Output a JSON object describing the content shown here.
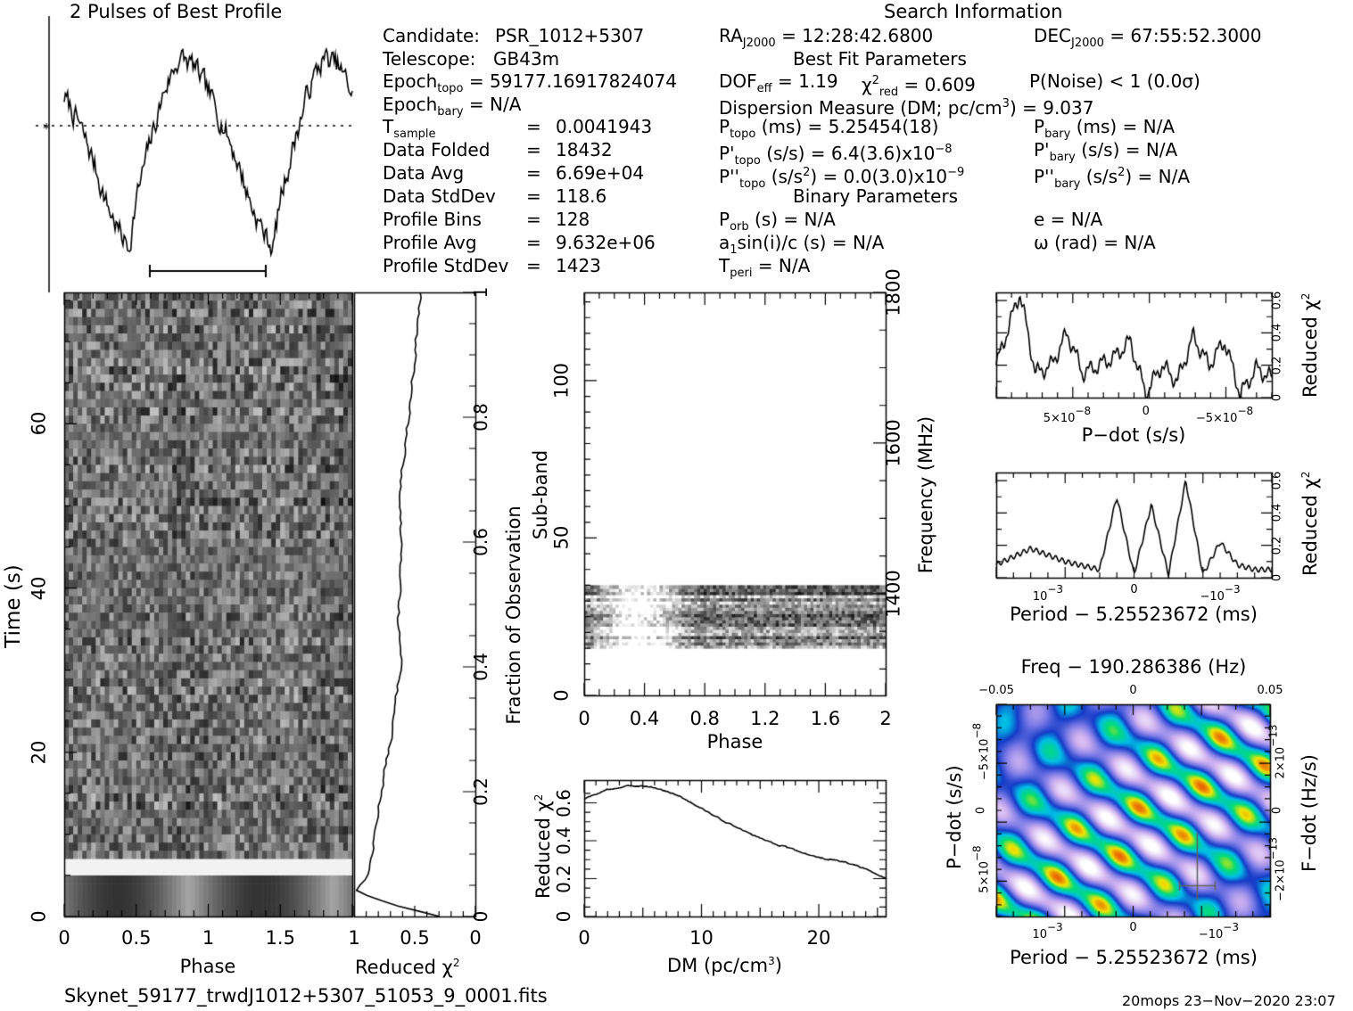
{
  "profile": {
    "title": "2 Pulses of Best Profile"
  },
  "search_info": {
    "title": "Search Information",
    "candidate_label": "Candidate:",
    "candidate": "PSR_1012+5307",
    "telescope_label": "Telescope:",
    "telescope": "GB43m",
    "epoch_topo_label": "Epoch",
    "epoch_topo_sub": "topo",
    "epoch_topo": "= 59177.16917824074",
    "epoch_bary_label": "Epoch",
    "epoch_bary_sub": "bary",
    "epoch_bary": "= N/A",
    "tsample_label": "T",
    "tsample_sub": "sample",
    "tsample": "0.0041943",
    "data_folded_label": "Data Folded",
    "data_folded": "18432",
    "data_avg_label": "Data Avg",
    "data_avg": "6.69e+04",
    "data_stddev_label": "Data StdDev",
    "data_stddev": "118.6",
    "profile_bins_label": "Profile Bins",
    "profile_bins": "128",
    "profile_avg_label": "Profile Avg",
    "profile_avg": "9.632e+06",
    "profile_stddev_label": "Profile StdDev",
    "profile_stddev": "1423",
    "eq": "=",
    "ra_label": "RA",
    "ra_sub": "J2000",
    "ra": "= 12:28:42.6800",
    "dec_label": "DEC",
    "dec_sub": "J2000",
    "dec": "= 67:55:52.3000",
    "best_fit_title": "Best Fit Parameters",
    "dof_label": "DOF",
    "dof_sub": "eff",
    "dof": "= 1.19",
    "chi_label": "χ",
    "chi_sup": "2",
    "chi_sub": "red",
    "chi": "= 0.609",
    "pnoise": "P(Noise) < 1   (0.0σ)",
    "dm_line_a": "Dispersion Measure (DM; pc/cm",
    "dm_line_sup": "3",
    "dm_line_b": ") = 9.037",
    "ptopo_label": "P",
    "ptopo_sub": "topo",
    "ptopo": "(ms) =  5.25454(18)",
    "pbary_label": "P",
    "pbary_sub": "bary",
    "pbary": "(ms) = N/A",
    "pdtopo_label": "P'",
    "pdtopo_sub": "topo",
    "pdtopo": "(s/s) =  6.4(3.6)x10",
    "pdtopo_exp": "−8",
    "pdbary_label": "P'",
    "pdbary_sub": "bary",
    "pdbary": "(s/s) = N/A",
    "pddtopo_label": "P''",
    "pddtopo_sub": "topo",
    "pddtopo_a": "(s/s",
    "pddtopo_sup": "2",
    "pddtopo_b": ") = 0.0(3.0)x10",
    "pddtopo_exp": "−9",
    "pddbary_label": "P''",
    "pddbary_sub": "bary",
    "pddbary_a": "(s/s",
    "pddbary_sup": "2",
    "pddbary_b": ") = N/A",
    "binary_title": "Binary Parameters",
    "porb_label": "P",
    "porb_sub": "orb",
    "porb": "(s) = N/A",
    "e": "e = N/A",
    "a1_a": "a",
    "a1_sub": "1",
    "a1_b": "sin(i)/c (s) = N/A",
    "omega": "ω (rad) = N/A",
    "tperi_label": "T",
    "tperi_sub": "peri",
    "tperi": "= N/A"
  },
  "time_phase": {
    "xlabel": "Phase",
    "ylabel": "Time (s)",
    "xticks": [
      "0",
      "0.5",
      "1",
      "1.5"
    ],
    "yticks": [
      "0",
      "20",
      "40",
      "60"
    ]
  },
  "redchi_time": {
    "xlabel": "Reduced χ",
    "xlabel_sup": "2",
    "xticks": [
      "1",
      "0.5",
      "0"
    ],
    "ylabel": "Fraction of Observation",
    "yticks": [
      "0",
      "0.2",
      "0.4",
      "0.6",
      "0.8",
      "1"
    ]
  },
  "subband": {
    "xlabel": "Phase",
    "ylabel": "Sub-band",
    "xticks": [
      "0",
      "0.4",
      "0.8",
      "1.2",
      "1.6",
      "2"
    ],
    "yticks": [
      "0",
      "50",
      "100"
    ],
    "ylabel_right": "Frequency (MHz)",
    "yticks_right": [
      "1400",
      "1600",
      "1800"
    ]
  },
  "dm_plot": {
    "xlabel": "DM (pc/cm",
    "xlabel_sup": "3",
    "xlabel_end": ")",
    "ylabel": "Reduced χ",
    "ylabel_sup": "2",
    "xticks": [
      "0",
      "10",
      "20"
    ],
    "yticks": [
      "0",
      "0.2",
      "0.4",
      "0.6"
    ]
  },
  "pdot_plot": {
    "xlabel": "P−dot (s/s)",
    "ylabel": "Reduced χ",
    "ylabel_sup": "2",
    "xticks": [
      "5×10",
      "0",
      "−5×10"
    ],
    "xtick_exp": "−8",
    "yticks": [
      "0",
      "0.2",
      "0.4",
      "0.6"
    ]
  },
  "period_plot": {
    "xlabel": "Period − 5.25523672 (ms)",
    "ylabel": "Reduced χ",
    "ylabel_sup": "2",
    "xticks": [
      "10",
      "0",
      "−10"
    ],
    "xtick_exp": "−3",
    "yticks": [
      "0",
      "0.2",
      "0.4",
      "0.6"
    ]
  },
  "ppdot_plot": {
    "top_label": "Freq − 190.286386 (Hz)",
    "top_ticks": [
      "−0.05",
      "0",
      "0.05"
    ],
    "xlabel": "Period − 5.25523672 (ms)",
    "xticks": [
      "10",
      "0",
      "−10"
    ],
    "xtick_exp": "−3",
    "ylabel": "P−dot (s/s)",
    "yticks": [
      "−5×10",
      "0",
      "5×10"
    ],
    "ytick_exp": "−8",
    "ylabel_right": "F−dot (Hz/s)",
    "yticks_right": [
      "2×10",
      "0",
      "−2×10"
    ],
    "ytick_right_exp": "−13"
  },
  "footer": {
    "filename": "Skynet_59177_trwdJ1012+5307_51053_9_0001.fits",
    "stamp": "20mops 23−Nov−2020 23:07"
  },
  "chart_data": [
    {
      "type": "line",
      "name": "profile",
      "x": [
        0,
        0.1,
        0.2,
        0.3,
        0.4,
        0.45,
        0.5,
        0.6,
        0.7,
        0.8,
        0.9,
        1.0,
        1.1,
        1.2,
        1.3,
        1.4,
        1.45,
        1.5,
        1.6,
        1.7,
        1.8,
        1.9,
        2.0
      ],
      "values": [
        0.72,
        0.6,
        0.43,
        0.22,
        0.08,
        0.03,
        0.25,
        0.52,
        0.76,
        0.9,
        0.86,
        0.74,
        0.6,
        0.43,
        0.22,
        0.08,
        0.03,
        0.25,
        0.52,
        0.76,
        0.9,
        0.86,
        0.74
      ],
      "xlim": [
        0,
        2
      ]
    },
    {
      "type": "heatmap",
      "name": "time-vs-phase",
      "xlim": [
        0,
        2
      ],
      "ylim": [
        0,
        76
      ],
      "ylabel": "Time (s)",
      "xlabel": "Phase"
    },
    {
      "type": "line",
      "name": "reduced-chi2-vs-fraction",
      "fraction": [
        0,
        0.02,
        0.04,
        0.06,
        0.1,
        0.2,
        0.3,
        0.4,
        0.5,
        0.6,
        0.7,
        0.8,
        0.9,
        1.0
      ],
      "values": [
        0.3,
        0.7,
        1.0,
        0.9,
        0.85,
        0.78,
        0.68,
        0.62,
        0.63,
        0.6,
        0.62,
        0.55,
        0.5,
        0.45
      ],
      "xlim": [
        1,
        0
      ],
      "ylim": [
        0,
        1
      ]
    },
    {
      "type": "heatmap",
      "name": "subband-vs-phase",
      "xlim": [
        0,
        2
      ],
      "ylim": [
        0,
        128
      ],
      "filled_subbands": [
        15,
        35
      ],
      "frequency_ylim_MHz": [
        1265,
        1800
      ]
    },
    {
      "type": "line",
      "name": "reduced-chi2-vs-dm",
      "x": [
        0,
        2,
        4,
        5,
        6,
        8,
        10,
        12,
        14,
        16,
        18,
        20,
        22,
        24,
        25.7
      ],
      "values": [
        0.62,
        0.67,
        0.69,
        0.69,
        0.68,
        0.64,
        0.57,
        0.5,
        0.44,
        0.39,
        0.35,
        0.31,
        0.29,
        0.25,
        0.2
      ],
      "xlim": [
        0,
        25.7
      ],
      "ylim": [
        0,
        0.72
      ]
    },
    {
      "type": "line",
      "name": "reduced-chi2-vs-pdot",
      "x": [
        9.5e-08,
        8e-08,
        7e-08,
        6e-08,
        5e-08,
        4e-08,
        3e-08,
        2e-08,
        1e-08,
        0,
        -1e-08,
        -2e-08,
        -3e-08,
        -4e-08,
        -5e-08,
        -6e-08,
        -7e-08,
        -8e-08
      ],
      "values": [
        0.2,
        0.65,
        0.15,
        0.2,
        0.4,
        0.15,
        0.2,
        0.25,
        0.35,
        0.02,
        0.2,
        0.1,
        0.38,
        0.2,
        0.35,
        0.02,
        0.18,
        0.12
      ],
      "xlim": [
        9.5e-08,
        -8e-08
      ],
      "ylim": [
        0,
        0.65
      ]
    },
    {
      "type": "line",
      "name": "reduced-chi2-vs-period",
      "x": [
        0.0016,
        0.0012,
        0.0008,
        0.0004,
        0.0002,
        0,
        -0.0002,
        -0.0004,
        -0.0006,
        -0.0008,
        -0.001,
        -0.0012,
        -0.0014
      ],
      "values": [
        0.08,
        0.18,
        0.1,
        0.05,
        0.5,
        0.02,
        0.45,
        0.02,
        0.6,
        0.02,
        0.22,
        0.08,
        0.05
      ],
      "xlim": [
        0.0016,
        -0.0016
      ],
      "ylim": [
        0,
        0.65
      ]
    },
    {
      "type": "heatmap",
      "name": "period-pdot-plane",
      "xlim": [
        0.0016,
        -0.0016
      ],
      "ylim": [
        -9e-08,
        9e-08
      ],
      "best_period_offset_ms": -0.00075,
      "best_pdot": 6.4e-08
    }
  ]
}
